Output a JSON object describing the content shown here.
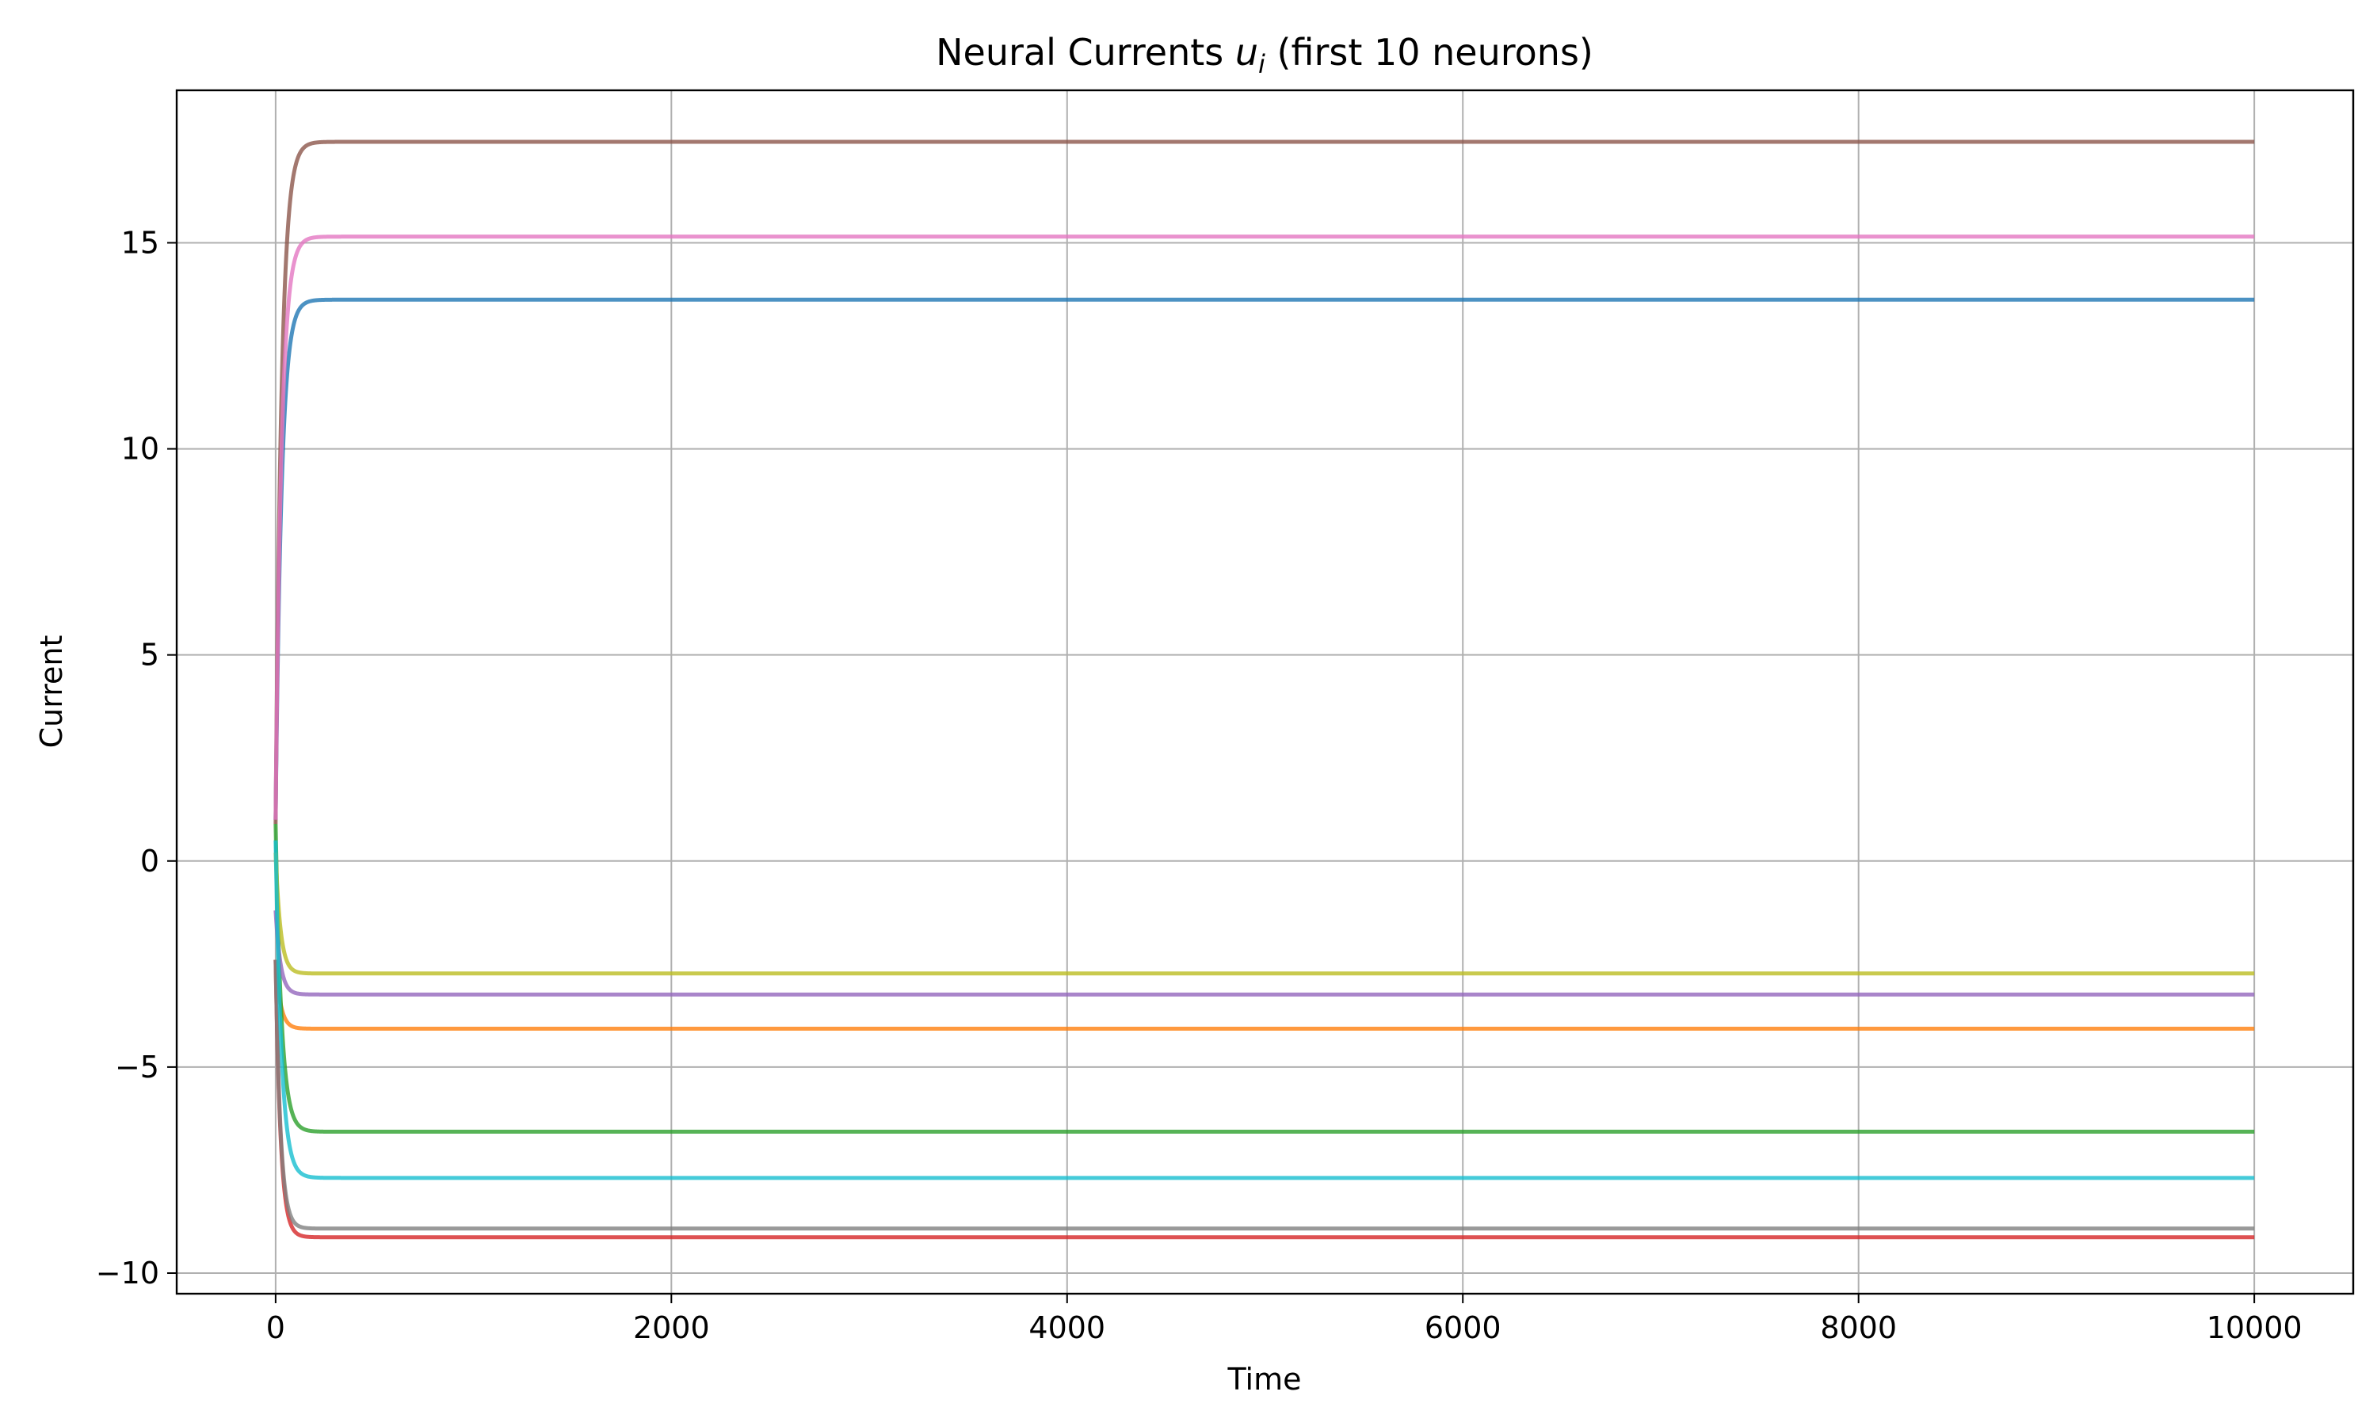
{
  "chart_data": {
    "type": "line",
    "title_main": "Neural Currents ",
    "title_symbol": "u",
    "title_subscript": "i",
    "title_rest": " (first 10 neurons)",
    "xlabel": "Time",
    "ylabel": "Current",
    "xlim": [
      -500,
      10500
    ],
    "ylim": [
      -10.5,
      18.7
    ],
    "xticks": [
      0,
      2000,
      4000,
      6000,
      8000,
      10000
    ],
    "xtick_labels": [
      "0",
      "2000",
      "4000",
      "6000",
      "8000",
      "10000"
    ],
    "yticks": [
      -10,
      -5,
      0,
      5,
      10,
      15
    ],
    "ytick_labels": [
      "−10",
      "−5",
      "0",
      "5",
      "10",
      "15"
    ],
    "grid": true,
    "legend": "none",
    "series": [
      {
        "color": "#1f77b4",
        "initial": 1.0,
        "final": 13.62,
        "tau": 30
      },
      {
        "color": "#ff7f0e",
        "initial": -2.4,
        "final": -4.07,
        "tau": 25
      },
      {
        "color": "#2ca02c",
        "initial": 0.9,
        "final": -6.57,
        "tau": 30
      },
      {
        "color": "#d62728",
        "initial": -2.4,
        "final": -9.13,
        "tau": 25
      },
      {
        "color": "#9467bd",
        "initial": -1.2,
        "final": -3.24,
        "tau": 25
      },
      {
        "color": "#8c564b",
        "initial": 0.9,
        "final": 17.45,
        "tau": 30
      },
      {
        "color": "#e377c2",
        "initial": 1.0,
        "final": 15.15,
        "tau": 30
      },
      {
        "color": "#7f7f7f",
        "initial": -2.4,
        "final": -8.92,
        "tau": 25
      },
      {
        "color": "#bcbd22",
        "initial": 0.2,
        "final": -2.73,
        "tau": 25
      },
      {
        "color": "#17becf",
        "initial": 0.5,
        "final": -7.69,
        "tau": 30
      }
    ]
  }
}
